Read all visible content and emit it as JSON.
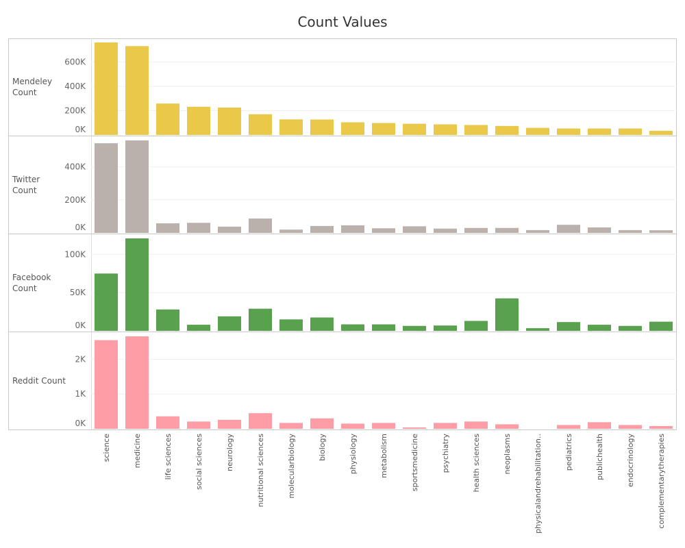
{
  "title": "Count Values",
  "chart_data": {
    "type": "bar",
    "title": "Count Values",
    "categories": [
      "science",
      "medicine",
      "life sciences",
      "social sciences",
      "neurology",
      "nutritional sciences",
      "molecularbiology",
      "biology",
      "physiology",
      "metabolism",
      "sportsmedicine",
      "psychiatry",
      "health sciences",
      "neoplasms",
      "physicalandrehabilitation..",
      "pediatrics",
      "publichealth",
      "endocrinology",
      "complementarytherapies"
    ],
    "grid": true,
    "series": [
      {
        "name": "Mendeley Count",
        "label_lines": [
          "Mendeley",
          "Count"
        ],
        "color": "#E9C84A",
        "values": [
          760000,
          730000,
          258000,
          232000,
          225000,
          170000,
          128000,
          127000,
          104000,
          98000,
          92000,
          87000,
          82000,
          74000,
          58000,
          53000,
          53000,
          53000,
          34000
        ],
        "ylim": [
          0,
          760000
        ],
        "ticks": [
          0,
          200000,
          400000,
          600000
        ],
        "tick_labels": [
          "0K",
          "200K",
          "400K",
          "600K"
        ]
      },
      {
        "name": "Twitter Count",
        "label_lines": [
          "Twitter",
          "Count"
        ],
        "color": "#BAB0AC",
        "values": [
          543000,
          560000,
          58000,
          61000,
          38000,
          87000,
          20000,
          42000,
          46000,
          28000,
          40000,
          26000,
          30000,
          30000,
          17000,
          49000,
          33000,
          17000,
          16000
        ],
        "ylim": [
          0,
          560000
        ],
        "ticks": [
          0,
          200000,
          400000
        ],
        "tick_labels": [
          "0K",
          "200K",
          "400K"
        ]
      },
      {
        "name": "Facebook Count",
        "label_lines": [
          "Facebook",
          "Count"
        ],
        "color": "#59A14F",
        "values": [
          75000,
          121000,
          28000,
          8000,
          19000,
          29000,
          15000,
          17500,
          8500,
          8500,
          6500,
          7000,
          13000,
          42500,
          3500,
          11500,
          8000,
          6500,
          12000
        ],
        "ylim": [
          0,
          121000
        ],
        "ticks": [
          0,
          50000,
          100000
        ],
        "tick_labels": [
          "0K",
          "50K",
          "100K"
        ]
      },
      {
        "name": "Reddit Count",
        "label_lines": [
          "Reddit Count"
        ],
        "color": "#FF9DA7",
        "values": [
          2550,
          2660,
          360,
          210,
          260,
          450,
          170,
          300,
          150,
          170,
          40,
          170,
          210,
          130,
          0,
          110,
          190,
          110,
          80
        ],
        "ylim": [
          0,
          2660
        ],
        "ticks": [
          0,
          1000,
          2000
        ],
        "tick_labels": [
          "0K",
          "1K",
          "2K"
        ]
      }
    ]
  }
}
